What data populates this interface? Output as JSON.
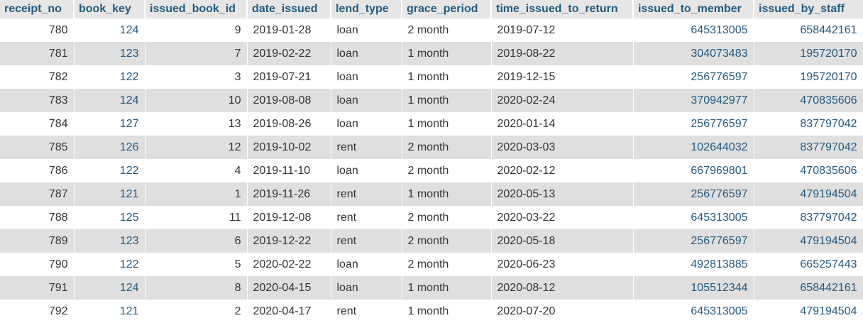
{
  "table": {
    "columns": [
      {
        "key": "receipt_no",
        "label": "receipt_no"
      },
      {
        "key": "book_key",
        "label": "book_key"
      },
      {
        "key": "issued_book_id",
        "label": "issued_book_id"
      },
      {
        "key": "date_issued",
        "label": "date_issued"
      },
      {
        "key": "lend_type",
        "label": "lend_type"
      },
      {
        "key": "grace_period",
        "label": "grace_period"
      },
      {
        "key": "time_issued_to_return",
        "label": "time_issued_to_return"
      },
      {
        "key": "issued_to_member",
        "label": "issued_to_member"
      },
      {
        "key": "issued_by_staff",
        "label": "issued_by_staff"
      }
    ],
    "rows": [
      [
        "780",
        "124",
        "9",
        "2019-01-28",
        "loan",
        "2 month",
        "2019-07-12",
        "645313005",
        "658442161"
      ],
      [
        "781",
        "123",
        "7",
        "2019-02-22",
        "loan",
        "1 month",
        "2019-08-22",
        "304073483",
        "195720170"
      ],
      [
        "782",
        "122",
        "3",
        "2019-07-21",
        "loan",
        "1 month",
        "2019-12-15",
        "256776597",
        "195720170"
      ],
      [
        "783",
        "124",
        "10",
        "2019-08-08",
        "loan",
        "1 month",
        "2020-02-24",
        "370942977",
        "470835606"
      ],
      [
        "784",
        "127",
        "13",
        "2019-08-26",
        "loan",
        "1 month",
        "2020-01-14",
        "256776597",
        "837797042"
      ],
      [
        "785",
        "126",
        "12",
        "2019-10-02",
        "rent",
        "2 month",
        "2020-03-03",
        "102644032",
        "837797042"
      ],
      [
        "786",
        "122",
        "4",
        "2019-11-10",
        "loan",
        "2 month",
        "2020-02-12",
        "667969801",
        "470835606"
      ],
      [
        "787",
        "121",
        "1",
        "2019-11-26",
        "rent",
        "1 month",
        "2020-05-13",
        "256776597",
        "479194504"
      ],
      [
        "788",
        "125",
        "11",
        "2019-12-08",
        "rent",
        "2 month",
        "2020-03-22",
        "645313005",
        "837797042"
      ],
      [
        "789",
        "123",
        "6",
        "2019-12-22",
        "rent",
        "2 month",
        "2020-05-18",
        "256776597",
        "479194504"
      ],
      [
        "790",
        "122",
        "5",
        "2020-02-22",
        "loan",
        "2 month",
        "2020-06-23",
        "492813885",
        "665257443"
      ],
      [
        "791",
        "124",
        "8",
        "2020-04-15",
        "loan",
        "1 month",
        "2020-08-12",
        "105512344",
        "658442161"
      ],
      [
        "792",
        "121",
        "2",
        "2020-04-17",
        "rent",
        "1 month",
        "2020-07-20",
        "645313005",
        "479194504"
      ]
    ]
  },
  "colors": {
    "header_bg": "#e6e6e6",
    "header_text": "#235a81",
    "link_text": "#235a81",
    "row_alt_bg": "#dfdfdf",
    "text": "#333333"
  }
}
